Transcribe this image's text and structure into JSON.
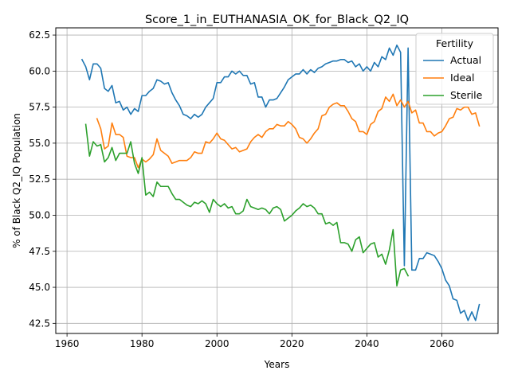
{
  "chart_data": {
    "type": "line",
    "title": "Score_1_in_EUTHANASIA_OK_for_Black_Q2_IQ",
    "xlabel": "Years",
    "ylabel": "% of Black Q2_IQ Population",
    "xlim": [
      1957,
      2075
    ],
    "ylim": [
      41.8,
      63.0
    ],
    "xticks": [
      1960,
      1980,
      2000,
      2020,
      2040,
      2060
    ],
    "yticks": [
      42.5,
      45.0,
      47.5,
      50.0,
      52.5,
      55.0,
      57.5,
      60.0,
      62.5
    ],
    "grid": true,
    "legend": {
      "title": "Fertility",
      "placement": "top-right"
    },
    "series": [
      {
        "name": "Actual",
        "color": "#1f77b4",
        "x": [
          1964,
          1965,
          1966,
          1967,
          1968,
          1969,
          1970,
          1971,
          1972,
          1973,
          1974,
          1975,
          1976,
          1977,
          1978,
          1979,
          1980,
          1981,
          1982,
          1983,
          1984,
          1985,
          1986,
          1987,
          1988,
          1989,
          1990,
          1991,
          1992,
          1993,
          1994,
          1995,
          1996,
          1997,
          1998,
          1999,
          2000,
          2001,
          2002,
          2003,
          2004,
          2005,
          2006,
          2007,
          2008,
          2009,
          2010,
          2011,
          2012,
          2013,
          2014,
          2015,
          2016,
          2017,
          2018,
          2019,
          2020,
          2021,
          2022,
          2023,
          2024,
          2025,
          2026,
          2027,
          2028,
          2029,
          2030,
          2031,
          2032,
          2033,
          2034,
          2035,
          2036,
          2037,
          2038,
          2039,
          2040,
          2041,
          2042,
          2043,
          2044,
          2045,
          2046,
          2047,
          2048,
          2049,
          2050,
          2051,
          2052,
          2053,
          2054,
          2055,
          2056,
          2057,
          2058,
          2059,
          2060,
          2061,
          2062,
          2063,
          2064,
          2065,
          2066,
          2067,
          2068,
          2069,
          2070
        ],
        "y": [
          60.8,
          60.3,
          59.4,
          60.5,
          60.5,
          60.2,
          58.8,
          58.6,
          59.0,
          57.8,
          57.9,
          57.3,
          57.5,
          57.0,
          57.4,
          57.2,
          58.3,
          58.3,
          58.6,
          58.8,
          59.4,
          59.3,
          59.1,
          59.2,
          58.5,
          58.0,
          57.6,
          57.0,
          56.9,
          56.7,
          57.0,
          56.8,
          57.0,
          57.5,
          57.8,
          58.1,
          59.2,
          59.2,
          59.6,
          59.6,
          60.0,
          59.8,
          60.0,
          59.7,
          59.7,
          59.1,
          59.2,
          58.2,
          58.2,
          57.5,
          58.0,
          58.0,
          58.1,
          58.5,
          58.9,
          59.4,
          59.6,
          59.8,
          59.8,
          60.1,
          59.8,
          60.1,
          59.9,
          60.2,
          60.3,
          60.5,
          60.6,
          60.7,
          60.7,
          60.8,
          60.8,
          60.6,
          60.7,
          60.3,
          60.5,
          60.0,
          60.3,
          60.0,
          60.6,
          60.3,
          61.0,
          60.8,
          61.6,
          61.1,
          61.8,
          61.3,
          46.5,
          61.6,
          46.2,
          46.2,
          47.0,
          47.0,
          47.4,
          47.3,
          47.2,
          46.8,
          46.3,
          45.5,
          45.1,
          44.2,
          44.1,
          43.2,
          43.4,
          42.7,
          43.3,
          42.7,
          43.8
        ]
      },
      {
        "name": "Ideal",
        "color": "#ff7f0e",
        "x": [
          1968,
          1969,
          1970,
          1971,
          1972,
          1973,
          1974,
          1975,
          1976,
          1977,
          1978,
          1979,
          1980,
          1981,
          1982,
          1983,
          1984,
          1985,
          1986,
          1987,
          1988,
          1989,
          1990,
          1991,
          1992,
          1993,
          1994,
          1995,
          1996,
          1997,
          1998,
          1999,
          2000,
          2001,
          2002,
          2003,
          2004,
          2005,
          2006,
          2007,
          2008,
          2009,
          2010,
          2011,
          2012,
          2013,
          2014,
          2015,
          2016,
          2017,
          2018,
          2019,
          2020,
          2021,
          2022,
          2023,
          2024,
          2025,
          2026,
          2027,
          2028,
          2029,
          2030,
          2031,
          2032,
          2033,
          2034,
          2035,
          2036,
          2037,
          2038,
          2039,
          2040,
          2041,
          2042,
          2043,
          2044,
          2045,
          2046,
          2047,
          2048,
          2049,
          2050,
          2051,
          2052,
          2053,
          2054,
          2055,
          2056,
          2057,
          2058,
          2059,
          2060,
          2061,
          2062,
          2063,
          2064,
          2065,
          2066,
          2067,
          2068,
          2069,
          2070
        ],
        "y": [
          56.7,
          56.0,
          54.6,
          54.8,
          56.4,
          55.6,
          55.6,
          55.4,
          54.1,
          54.0,
          54.0,
          53.3,
          53.9,
          53.7,
          53.9,
          54.2,
          55.3,
          54.5,
          54.3,
          54.1,
          53.6,
          53.7,
          53.8,
          53.8,
          53.8,
          54.0,
          54.4,
          54.3,
          54.3,
          55.1,
          55.0,
          55.3,
          55.7,
          55.3,
          55.2,
          54.9,
          54.6,
          54.7,
          54.4,
          54.5,
          54.6,
          55.1,
          55.4,
          55.6,
          55.4,
          55.8,
          56.0,
          56.0,
          56.3,
          56.2,
          56.2,
          56.5,
          56.3,
          56.0,
          55.4,
          55.3,
          55.0,
          55.3,
          55.7,
          56.0,
          56.9,
          57.0,
          57.5,
          57.7,
          57.8,
          57.6,
          57.6,
          57.2,
          56.7,
          56.5,
          55.8,
          55.8,
          55.6,
          56.3,
          56.5,
          57.2,
          57.4,
          58.2,
          57.9,
          58.4,
          57.6,
          58.0,
          57.5,
          57.9,
          57.1,
          57.3,
          56.4,
          56.4,
          55.8,
          55.8,
          55.5,
          55.7,
          55.8,
          56.2,
          56.7,
          56.8,
          57.4,
          57.3,
          57.5,
          57.5,
          57.0,
          57.1,
          56.2
        ]
      },
      {
        "name": "Sterile",
        "color": "#2ca02c",
        "x": [
          1965,
          1966,
          1967,
          1968,
          1969,
          1970,
          1971,
          1972,
          1973,
          1974,
          1975,
          1976,
          1977,
          1978,
          1979,
          1980,
          1981,
          1982,
          1983,
          1984,
          1985,
          1986,
          1987,
          1988,
          1989,
          1990,
          1991,
          1992,
          1993,
          1994,
          1995,
          1996,
          1997,
          1998,
          1999,
          2000,
          2001,
          2002,
          2003,
          2004,
          2005,
          2006,
          2007,
          2008,
          2009,
          2010,
          2011,
          2012,
          2013,
          2014,
          2015,
          2016,
          2017,
          2018,
          2019,
          2020,
          2021,
          2022,
          2023,
          2024,
          2025,
          2026,
          2027,
          2028,
          2029,
          2030,
          2031,
          2032,
          2033,
          2034,
          2035,
          2036,
          2037,
          2038,
          2039,
          2040,
          2041,
          2042,
          2043,
          2044,
          2045,
          2046,
          2047,
          2048,
          2049,
          2050,
          2051
        ],
        "y": [
          56.3,
          54.1,
          55.1,
          54.8,
          54.9,
          53.7,
          54.0,
          54.7,
          53.8,
          54.3,
          54.3,
          54.3,
          55.1,
          53.6,
          52.9,
          54.0,
          51.4,
          51.6,
          51.3,
          52.3,
          52.0,
          52.0,
          52.0,
          51.5,
          51.1,
          51.1,
          50.9,
          50.7,
          50.6,
          50.9,
          50.8,
          51.0,
          50.8,
          50.2,
          51.1,
          50.8,
          50.6,
          50.8,
          50.5,
          50.6,
          50.1,
          50.1,
          50.3,
          51.1,
          50.6,
          50.5,
          50.4,
          50.5,
          50.4,
          50.1,
          50.5,
          50.6,
          50.4,
          49.6,
          49.8,
          50.0,
          50.3,
          50.5,
          50.8,
          50.6,
          50.7,
          50.5,
          50.1,
          50.1,
          49.4,
          49.5,
          49.3,
          49.5,
          48.1,
          48.1,
          48.0,
          47.5,
          48.3,
          48.5,
          47.4,
          47.7,
          48.0,
          48.1,
          47.1,
          47.3,
          46.6,
          47.6,
          49.0,
          45.1,
          46.2,
          46.3,
          45.8
        ]
      }
    ]
  }
}
